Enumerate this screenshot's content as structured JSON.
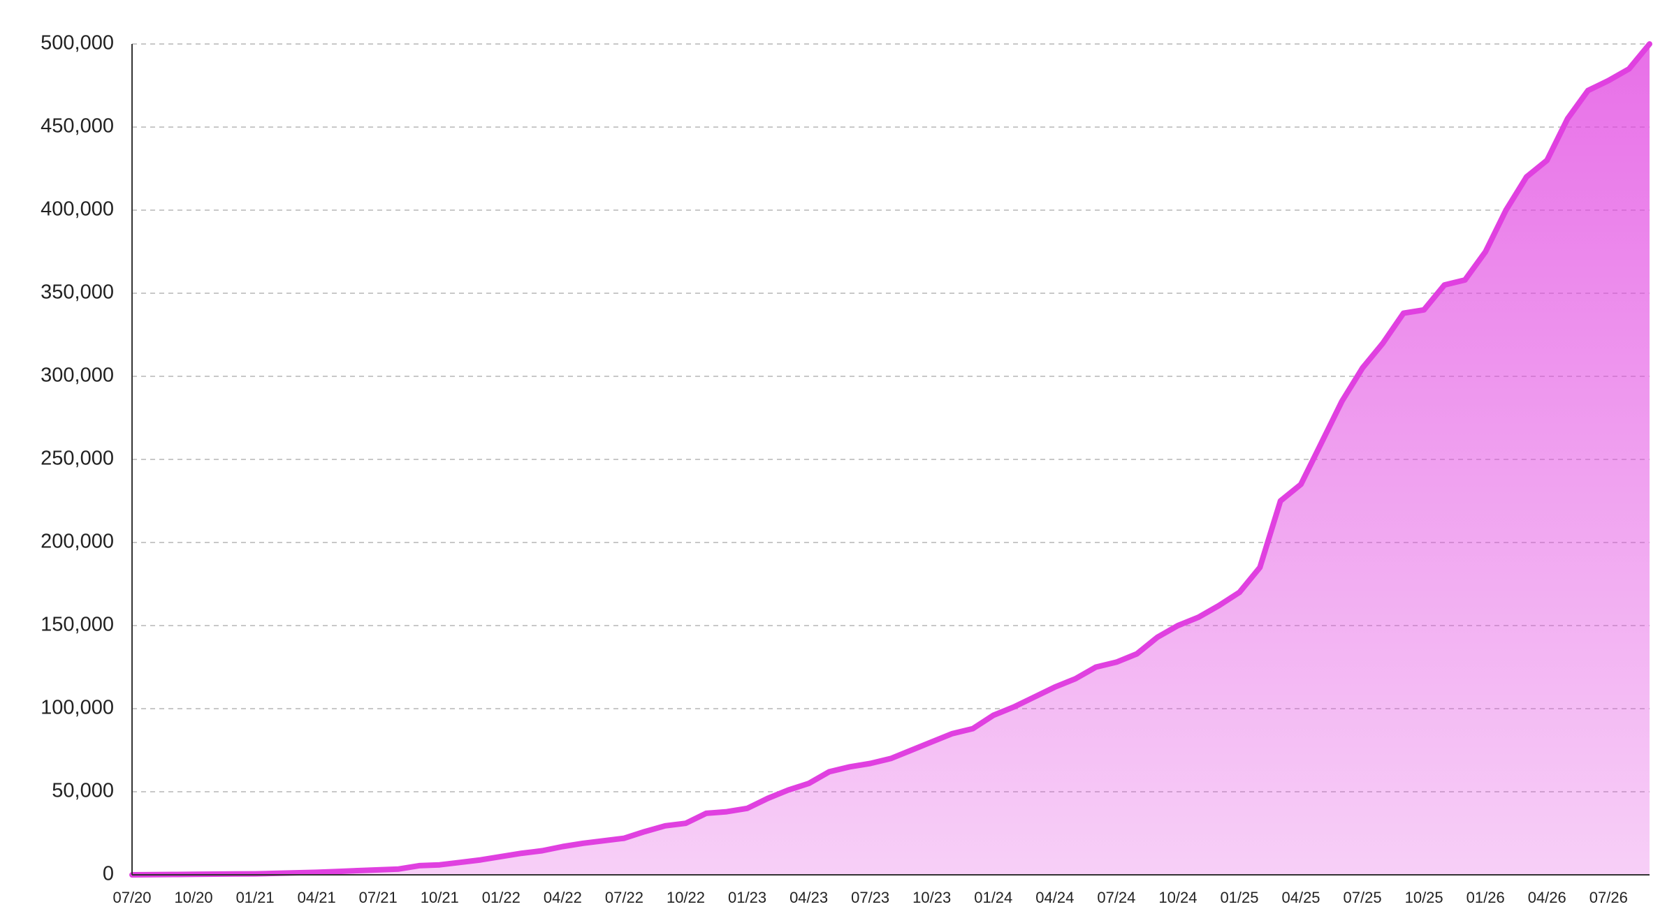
{
  "chart_data": {
    "type": "area",
    "categories": [
      "07/20",
      null,
      null,
      "10/20",
      null,
      null,
      "01/21",
      null,
      null,
      "04/21",
      null,
      null,
      "07/21",
      null,
      null,
      "10/21",
      null,
      null,
      "01/22",
      null,
      null,
      "04/22",
      null,
      null,
      "07/22",
      null,
      null,
      "10/22",
      null,
      null,
      "01/23",
      null,
      null,
      "04/23",
      null,
      null,
      "07/23",
      null,
      null,
      "10/23",
      null,
      null,
      "01/24",
      null,
      null,
      "04/24",
      null,
      null,
      "07/24",
      null,
      null,
      "10/24",
      null,
      null,
      "01/25",
      null,
      null,
      "04/25",
      null,
      null,
      "07/25",
      null,
      null,
      "10/25",
      null,
      null,
      "01/26",
      null,
      null,
      "04/26",
      null,
      null,
      "07/26",
      null,
      null
    ],
    "values": [
      0,
      100,
      200,
      300,
      400,
      500,
      600,
      900,
      1200,
      1500,
      2000,
      2500,
      3000,
      3500,
      5500,
      6000,
      7500,
      9000,
      11000,
      13000,
      14500,
      17000,
      19000,
      20500,
      22000,
      26000,
      29500,
      31000,
      37000,
      38000,
      40000,
      46000,
      51000,
      55000,
      62000,
      65000,
      67000,
      70000,
      75000,
      80000,
      85000,
      88000,
      96000,
      101000,
      107000,
      113000,
      118000,
      125000,
      128000,
      133000,
      143000,
      150000,
      155000,
      162000,
      170000,
      185000,
      225000,
      235000,
      260000,
      285000,
      305000,
      320000,
      338000,
      340000,
      355000,
      358000,
      375000,
      400000,
      420000,
      430000,
      455000,
      472000,
      478000,
      485000,
      500000
    ],
    "color": "#e040e0",
    "ylim": [
      0,
      500000
    ],
    "yticks": [
      0,
      {
        "value": 50000,
        "label": "50,000"
      },
      {
        "value": 100000,
        "label": "100,000"
      },
      {
        "value": 150000,
        "label": "150,000"
      },
      {
        "value": 200000,
        "label": "200,000"
      },
      {
        "value": 250000,
        "label": "250,000"
      },
      {
        "value": 300000,
        "label": "300,000"
      },
      {
        "value": 350000,
        "label": "350,000"
      },
      {
        "value": 400000,
        "label": "400,000"
      },
      {
        "value": 450000,
        "label": "450,000"
      },
      {
        "value": 500000,
        "label": "500,000"
      }
    ],
    "grid": true
  }
}
